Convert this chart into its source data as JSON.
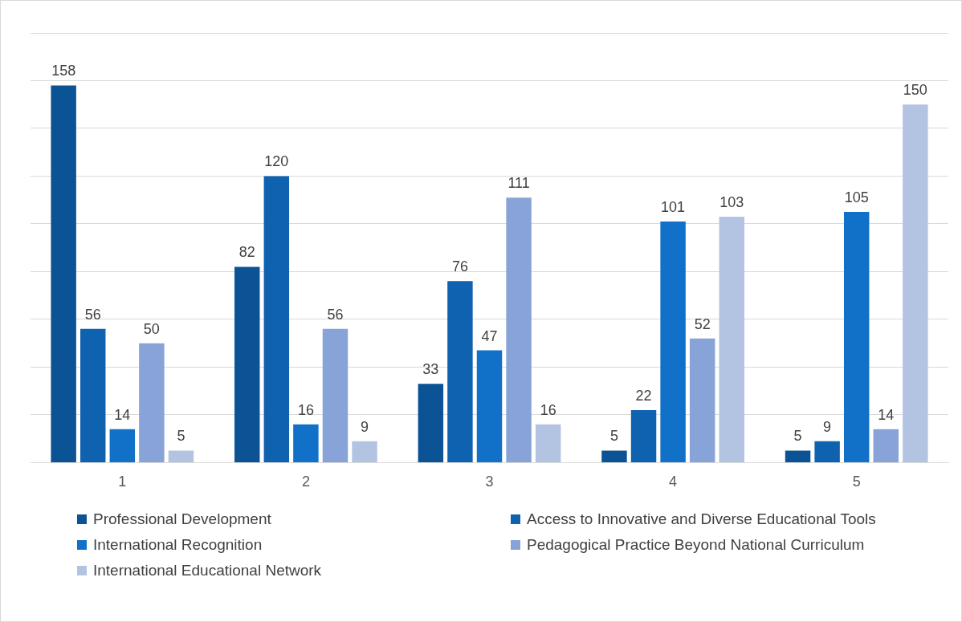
{
  "chart_data": {
    "type": "bar",
    "categories": [
      "1",
      "2",
      "3",
      "4",
      "5"
    ],
    "series": [
      {
        "name": "Professional Development",
        "color": "#0b5394",
        "values": [
          158,
          82,
          33,
          5,
          5
        ]
      },
      {
        "name": "Access to Innovative and Diverse Educational Tools",
        "color": "#0e62b0",
        "values": [
          56,
          120,
          76,
          22,
          9
        ]
      },
      {
        "name": "International Recognition",
        "color": "#1170c8",
        "values": [
          14,
          16,
          47,
          101,
          105
        ]
      },
      {
        "name": "Pedagogical Practice Beyond National Curriculum",
        "color": "#87a3d8",
        "values": [
          50,
          56,
          111,
          52,
          14
        ]
      },
      {
        "name": "International Educational Network",
        "color": "#b3c4e3",
        "values": [
          5,
          9,
          16,
          103,
          150
        ]
      }
    ],
    "ylim": [
      0,
      180
    ],
    "yticks": [
      {
        "value": 0,
        "label": null
      },
      {
        "value": 20,
        "label": null
      },
      {
        "value": 40,
        "label": null
      },
      {
        "value": 60,
        "label": null
      },
      {
        "value": 80,
        "label": null
      },
      {
        "value": 100,
        "label": null
      },
      {
        "value": 120,
        "label": null
      },
      {
        "value": 140,
        "label": null
      },
      {
        "value": 160,
        "label": null
      },
      {
        "value": 180,
        "label": null
      }
    ],
    "tick_labels": "x",
    "grid": "y",
    "legend": "bottom",
    "data_labels": true
  }
}
